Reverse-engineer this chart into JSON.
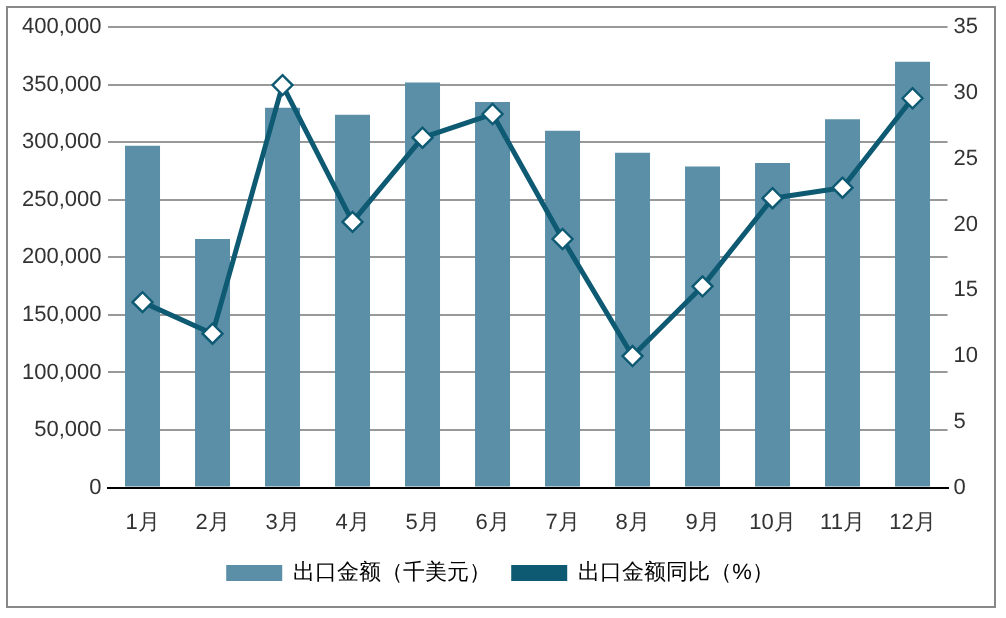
{
  "chart_data": {
    "type": "bar",
    "categories": [
      "1月",
      "2月",
      "3月",
      "4月",
      "5月",
      "6月",
      "7月",
      "8月",
      "9月",
      "10月",
      "11月",
      "12月"
    ],
    "series": [
      {
        "name": "出口金额（千美元）",
        "color": "#5b8fa8",
        "values": [
          297000,
          216000,
          330000,
          324000,
          352000,
          335000,
          310000,
          291000,
          279000,
          282000,
          320000,
          370000
        ]
      },
      {
        "name": "出口金额同比（%）",
        "type": "line",
        "axis": "y2",
        "color": "#0e5a73",
        "values": [
          14.1,
          11.7,
          30.6,
          20.2,
          26.6,
          28.4,
          18.9,
          10.0,
          15.3,
          22.0,
          22.8,
          29.6
        ]
      }
    ],
    "ylim": [
      0,
      400000
    ],
    "yticks": [
      0,
      {
        "value": 50000,
        "label": "50,000"
      },
      {
        "value": 100000,
        "label": "100,000"
      },
      {
        "value": 150000,
        "label": "150,000"
      },
      {
        "value": 200000,
        "label": "200,000"
      },
      {
        "value": 250000,
        "label": "250,000"
      },
      {
        "value": 300000,
        "label": "300,000"
      },
      {
        "value": 350000,
        "label": "350,000"
      },
      {
        "value": 400000,
        "label": "400,000"
      }
    ],
    "y2lim": [
      0,
      35
    ],
    "y2ticks": [
      0,
      5,
      10,
      15,
      20,
      25,
      30,
      35
    ],
    "grid": "y",
    "legend": "bottom",
    "marker": "diamond",
    "line_style": "solid"
  }
}
